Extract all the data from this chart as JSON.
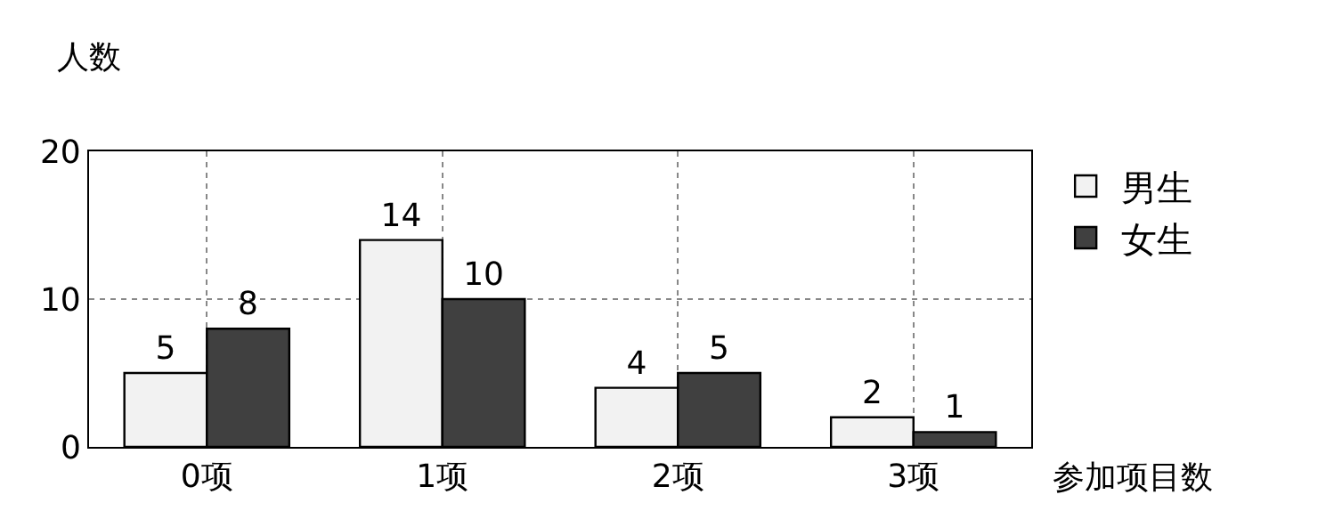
{
  "chart_data": {
    "type": "bar",
    "xlabel": "参加项目数",
    "ylabel": "人数",
    "categories": [
      "0项",
      "1项",
      "2项",
      "3项"
    ],
    "series": [
      {
        "name": "男生",
        "color": "#f2f2f2",
        "values": [
          5,
          14,
          4,
          2
        ]
      },
      {
        "name": "女生",
        "color": "#404040",
        "values": [
          8,
          10,
          5,
          1
        ]
      }
    ],
    "ylim": [
      0,
      20
    ],
    "yticks": [
      0,
      10,
      20
    ],
    "grid": true,
    "legend": "top right",
    "data_labels": true
  }
}
